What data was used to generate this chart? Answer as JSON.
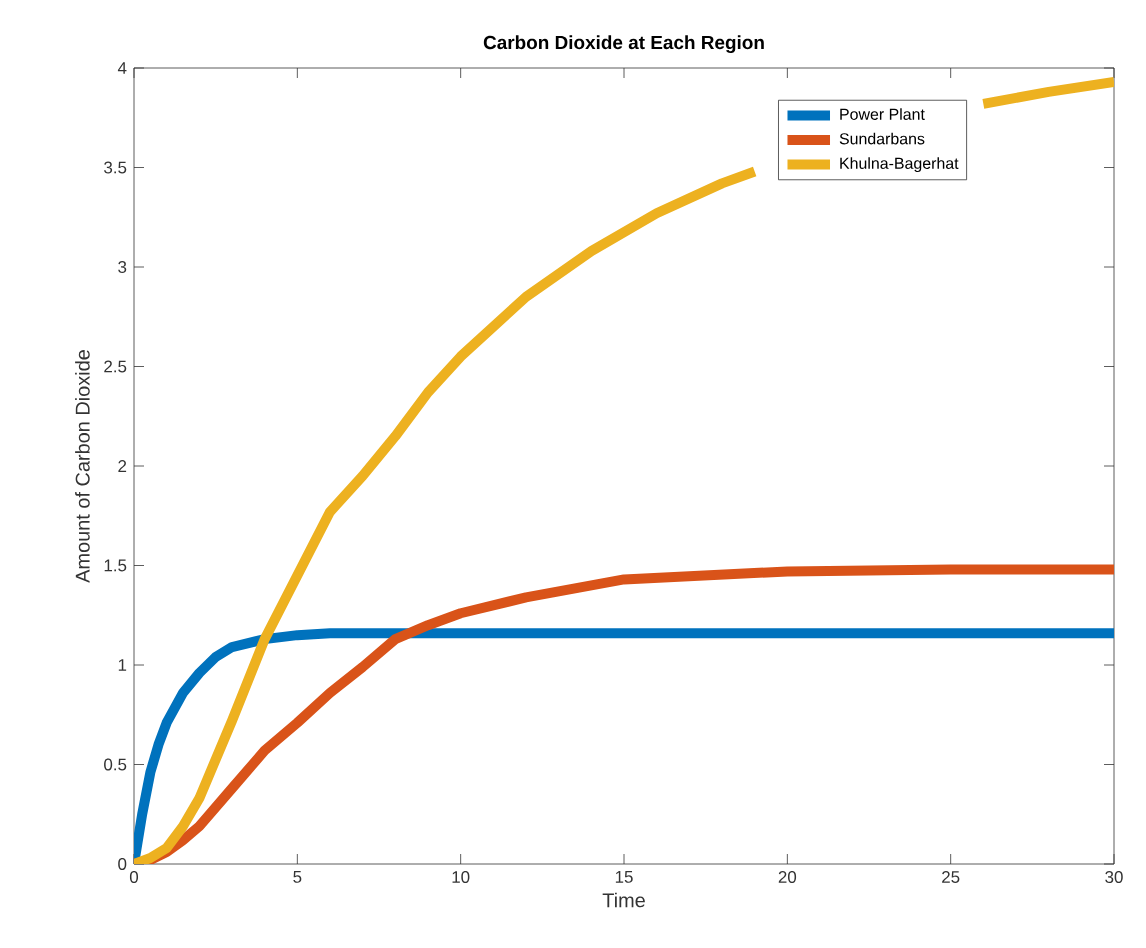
{
  "chart_data": {
    "type": "line",
    "title": "Carbon Dioxide at Each Region",
    "xlabel": "Time",
    "ylabel": "Amount of Carbon Dioxide",
    "xlim": [
      0,
      30
    ],
    "ylim": [
      0,
      4
    ],
    "xticks": [
      0,
      5,
      10,
      15,
      20,
      25,
      30
    ],
    "yticks": [
      0,
      0.5,
      1,
      1.5,
      2,
      2.5,
      3,
      3.5,
      4
    ],
    "legend": "top right",
    "grid": false,
    "marker": "none",
    "line_style": "solid",
    "series": [
      {
        "name": "Power Plant",
        "color": "#0072bd",
        "x": [
          0,
          0.25,
          0.5,
          0.75,
          1,
          1.5,
          2,
          2.5,
          3,
          4,
          5,
          6,
          8,
          10,
          15,
          20,
          25,
          30
        ],
        "values": [
          0,
          0.25,
          0.46,
          0.6,
          0.71,
          0.86,
          0.96,
          1.04,
          1.09,
          1.13,
          1.15,
          1.16,
          1.16,
          1.16,
          1.16,
          1.16,
          1.16,
          1.16
        ]
      },
      {
        "name": "Sundarbans",
        "color": "#d95319",
        "x": [
          0,
          0.5,
          1,
          1.5,
          2,
          3,
          4,
          5,
          6,
          7,
          8,
          9,
          10,
          12,
          15,
          20,
          25,
          30
        ],
        "values": [
          0,
          0.02,
          0.06,
          0.12,
          0.19,
          0.38,
          0.57,
          0.71,
          0.86,
          0.99,
          1.13,
          1.2,
          1.26,
          1.34,
          1.43,
          1.47,
          1.48,
          1.48
        ]
      },
      {
        "name": "Khulna-Bagerhat",
        "color": "#edb120",
        "x": [
          0,
          0.5,
          1,
          1.5,
          2,
          3,
          4,
          5,
          6,
          7,
          8,
          9,
          10,
          12,
          14,
          16,
          18,
          19,
          20,
          22,
          24,
          26,
          28,
          30
        ],
        "values": [
          0,
          0.03,
          0.08,
          0.19,
          0.33,
          0.72,
          1.13,
          1.45,
          1.77,
          1.95,
          2.15,
          2.37,
          2.55,
          2.85,
          3.08,
          3.27,
          3.42,
          3.48,
          null,
          null,
          null,
          3.82,
          3.88,
          3.93
        ]
      }
    ]
  }
}
